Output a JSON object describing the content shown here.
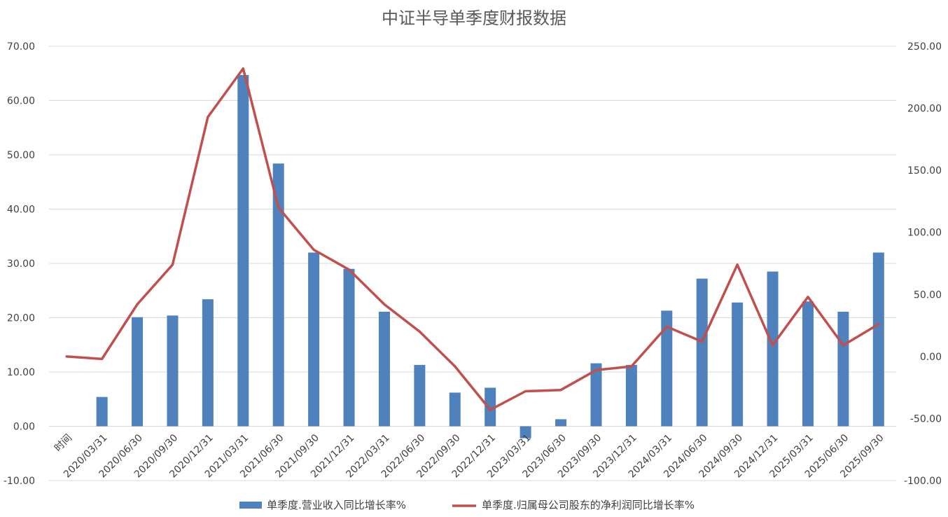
{
  "chart_data": {
    "type": "bar+line",
    "title": "中证半导单季度财报数据",
    "categories": [
      "时间",
      "2020/03/31",
      "2020/06/30",
      "2020/09/30",
      "2020/12/31",
      "2021/03/31",
      "2021/06/30",
      "2021/09/30",
      "2021/12/31",
      "2022/03/31",
      "2022/06/30",
      "2022/09/30",
      "2022/12/31",
      "2023/03/31",
      "2023/06/30",
      "2023/09/30",
      "2023/12/31",
      "2024/03/31",
      "2024/06/30",
      "2024/09/30",
      "2024/12/31",
      "2025/03/31",
      "2025/06/30",
      "2025/09/30"
    ],
    "series": [
      {
        "name": "单季度.营业收入同比增长率%",
        "type": "bar",
        "axis": "left",
        "color": "#4F81BD",
        "values": [
          null,
          5.4,
          20.1,
          20.4,
          23.4,
          64.7,
          48.4,
          32.0,
          29.0,
          21.1,
          11.3,
          6.2,
          7.1,
          -2.2,
          1.3,
          11.6,
          11.3,
          21.3,
          27.2,
          22.8,
          28.5,
          23.0,
          21.1,
          32.0
        ]
      },
      {
        "name": "单季度.归属母公司股东的净利润同比增长率%",
        "type": "line",
        "axis": "right",
        "color": "#C0504D",
        "values": [
          0.0,
          -2.0,
          42.0,
          74.0,
          193.0,
          232.0,
          120.0,
          86.0,
          70.0,
          42.0,
          20.0,
          -8.0,
          -43.0,
          -28.0,
          -27.0,
          -11.0,
          -8.0,
          24.0,
          12.0,
          74.0,
          9.0,
          48.0,
          9.0,
          26.0
        ]
      }
    ],
    "y_left": {
      "min": -10,
      "max": 70,
      "ticks": [
        "-10.00",
        "0.00",
        "10.00",
        "20.00",
        "30.00",
        "40.00",
        "50.00",
        "60.00",
        "70.00"
      ]
    },
    "y_right": {
      "min": -100,
      "max": 250,
      "ticks": [
        "-100.00",
        "-50.00",
        "0.00",
        "50.00",
        "100.00",
        "150.00",
        "200.00",
        "250.00"
      ]
    },
    "grid": true,
    "legend_position": "bottom"
  }
}
